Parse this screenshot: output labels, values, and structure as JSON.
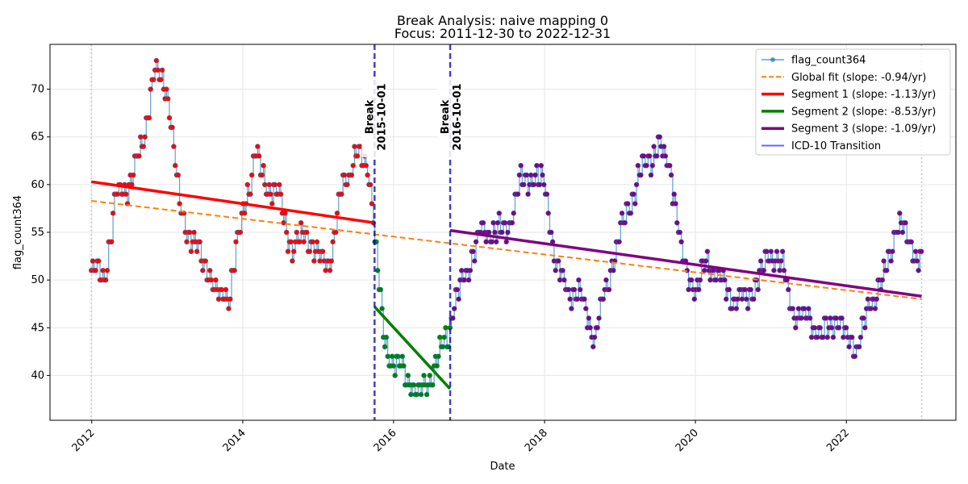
{
  "chart_data": {
    "type": "line",
    "title": "Break Analysis: naive mapping 0",
    "subtitle": "Focus: 2011-12-30 to 2022-12-31",
    "xlabel": "Date",
    "ylabel": "flag_count364",
    "xlim": [
      "2011-06-13",
      "2023-06-15"
    ],
    "ylim": [
      35.3,
      74.7
    ],
    "x_ticks": [
      "2012",
      "2014",
      "2016",
      "2018",
      "2020",
      "2022"
    ],
    "y_ticks": [
      40,
      45,
      50,
      55,
      60,
      65,
      70
    ],
    "grid": true,
    "legend_position": "top-right",
    "focus_start": "2011-12-30",
    "focus_end": "2022-12-31",
    "anchors": [
      [
        "2011-12-30",
        51
      ],
      [
        "2012-03-01",
        50
      ],
      [
        "2012-05-01",
        59
      ],
      [
        "2012-07-01",
        60
      ],
      [
        "2012-09-01",
        64
      ],
      [
        "2012-11-01",
        72
      ],
      [
        "2013-01-01",
        70
      ],
      [
        "2013-03-01",
        58
      ],
      [
        "2013-05-01",
        54
      ],
      [
        "2013-07-01",
        52
      ],
      [
        "2013-09-01",
        48
      ],
      [
        "2013-11-01",
        49
      ],
      [
        "2014-01-01",
        57
      ],
      [
        "2014-03-01",
        63
      ],
      [
        "2014-05-01",
        60
      ],
      [
        "2014-07-01",
        58
      ],
      [
        "2014-09-01",
        53
      ],
      [
        "2014-11-01",
        55
      ],
      [
        "2015-01-01",
        52
      ],
      [
        "2015-03-01",
        52
      ],
      [
        "2015-05-01",
        60
      ],
      [
        "2015-07-01",
        63
      ],
      [
        "2015-09-01",
        62
      ],
      [
        "2015-09-30",
        56
      ],
      [
        "2015-10-01",
        54
      ],
      [
        "2015-11-15",
        44
      ],
      [
        "2016-01-01",
        41
      ],
      [
        "2016-03-01",
        40
      ],
      [
        "2016-05-01",
        38
      ],
      [
        "2016-07-01",
        40
      ],
      [
        "2016-09-30",
        45
      ],
      [
        "2016-10-01",
        46
      ],
      [
        "2016-12-01",
        50
      ],
      [
        "2017-03-01",
        55
      ],
      [
        "2017-05-01",
        55
      ],
      [
        "2017-07-01",
        55
      ],
      [
        "2017-09-01",
        60
      ],
      [
        "2017-11-01",
        61
      ],
      [
        "2018-01-01",
        60
      ],
      [
        "2018-03-01",
        51
      ],
      [
        "2018-05-01",
        49
      ],
      [
        "2018-07-01",
        48
      ],
      [
        "2018-09-01",
        44
      ],
      [
        "2018-11-01",
        50
      ],
      [
        "2019-01-01",
        55
      ],
      [
        "2019-03-01",
        59
      ],
      [
        "2019-05-01",
        62
      ],
      [
        "2019-07-01",
        64
      ],
      [
        "2019-09-01",
        62
      ],
      [
        "2019-11-01",
        52
      ],
      [
        "2020-01-01",
        49
      ],
      [
        "2020-03-01",
        52
      ],
      [
        "2020-05-01",
        50
      ],
      [
        "2020-07-01",
        48
      ],
      [
        "2020-09-01",
        48
      ],
      [
        "2020-11-01",
        50
      ],
      [
        "2021-01-01",
        53
      ],
      [
        "2021-03-01",
        51
      ],
      [
        "2021-05-01",
        46
      ],
      [
        "2021-07-01",
        46
      ],
      [
        "2021-09-01",
        44
      ],
      [
        "2021-11-01",
        46
      ],
      [
        "2022-01-01",
        44
      ],
      [
        "2022-03-01",
        43
      ],
      [
        "2022-05-01",
        48
      ],
      [
        "2022-07-01",
        50
      ],
      [
        "2022-09-01",
        56
      ],
      [
        "2022-11-01",
        54
      ],
      [
        "2022-12-31",
        52
      ]
    ],
    "series": [
      {
        "name": "flag_count364",
        "color": "#1f77b4",
        "style": "line-with-markers"
      },
      {
        "name": "Global fit (slope: -0.94/yr)",
        "color": "#ff7f0e",
        "style": "dashed",
        "points": [
          [
            "2011-12-30",
            58.3
          ],
          [
            "2022-12-31",
            48.0
          ]
        ]
      },
      {
        "name": "Segment 1 (slope: -1.13/yr)",
        "color": "#ff0000",
        "style": "solid",
        "points": [
          [
            "2011-12-30",
            60.3
          ],
          [
            "2015-09-30",
            56.0
          ]
        ]
      },
      {
        "name": "Segment 2 (slope: -8.53/yr)",
        "color": "#008000",
        "style": "solid",
        "points": [
          [
            "2015-10-01",
            47.2
          ],
          [
            "2016-09-30",
            38.6
          ]
        ]
      },
      {
        "name": "Segment 3 (slope: -1.09/yr)",
        "color": "#800080",
        "style": "solid",
        "points": [
          [
            "2016-10-01",
            55.2
          ],
          [
            "2022-12-31",
            48.3
          ]
        ]
      },
      {
        "name": "ICD-10 Transition",
        "color": "#0000ff",
        "style": "vertical-line"
      }
    ],
    "breaks": [
      {
        "date": "2015-10-01",
        "label_top": "Break",
        "label_bottom": "2015-10-01"
      },
      {
        "date": "2016-10-01",
        "label_top": "Break",
        "label_bottom": "2016-10-01"
      }
    ]
  }
}
